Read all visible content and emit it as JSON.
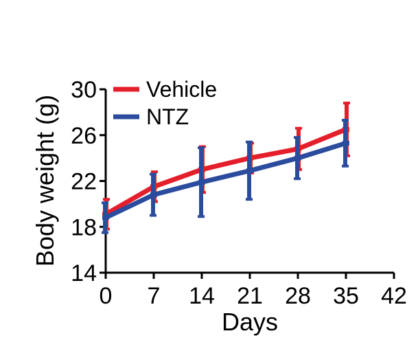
{
  "chart_data": {
    "type": "line",
    "xlabel": "Days",
    "ylabel": "Body weight (g)",
    "x": [
      0,
      7,
      14,
      21,
      28,
      35
    ],
    "xticks": [
      0,
      7,
      14,
      21,
      28,
      35,
      42
    ],
    "yticks": [
      14,
      18,
      22,
      26,
      30
    ],
    "xlim": [
      0,
      42
    ],
    "ylim": [
      14,
      30
    ],
    "grid": false,
    "legend": "top-left",
    "series": [
      {
        "name": "Vehicle",
        "color": "#e41e2b",
        "values": [
          19.1,
          21.5,
          23.0,
          24.0,
          24.8,
          26.5
        ],
        "errors": [
          1.3,
          1.3,
          2.0,
          1.3,
          1.8,
          2.3
        ]
      },
      {
        "name": "NTZ",
        "color": "#2b4c9e",
        "values": [
          18.8,
          20.8,
          21.9,
          22.9,
          24.0,
          25.3
        ],
        "errors": [
          1.3,
          1.8,
          3.0,
          2.5,
          1.8,
          2.0
        ]
      }
    ]
  }
}
